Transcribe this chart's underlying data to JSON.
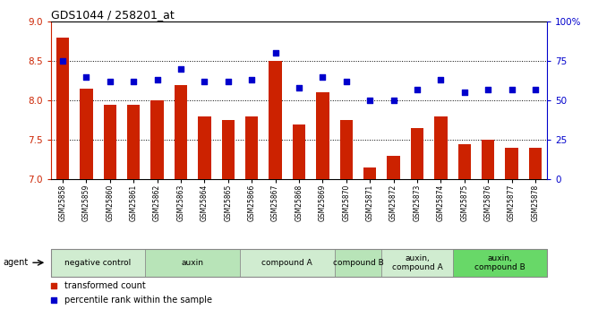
{
  "title": "GDS1044 / 258201_at",
  "samples": [
    "GSM25858",
    "GSM25859",
    "GSM25860",
    "GSM25861",
    "GSM25862",
    "GSM25863",
    "GSM25864",
    "GSM25865",
    "GSM25866",
    "GSM25867",
    "GSM25868",
    "GSM25869",
    "GSM25870",
    "GSM25871",
    "GSM25872",
    "GSM25873",
    "GSM25874",
    "GSM25875",
    "GSM25876",
    "GSM25877",
    "GSM25878"
  ],
  "bar_values": [
    8.8,
    8.15,
    7.95,
    7.95,
    8.0,
    8.2,
    7.8,
    7.75,
    7.8,
    8.5,
    7.7,
    8.1,
    7.75,
    7.15,
    7.3,
    7.65,
    7.8,
    7.45,
    7.5,
    7.4,
    7.4
  ],
  "dot_values": [
    75,
    65,
    62,
    62,
    63,
    70,
    62,
    62,
    63,
    80,
    58,
    65,
    62,
    50,
    50,
    57,
    63,
    55,
    57,
    57,
    57
  ],
  "bar_color": "#cc2200",
  "dot_color": "#0000cc",
  "ylim_left": [
    7.0,
    9.0
  ],
  "ylim_right": [
    0,
    100
  ],
  "yticks_left": [
    7.0,
    7.5,
    8.0,
    8.5,
    9.0
  ],
  "yticks_right": [
    0,
    25,
    50,
    75,
    100
  ],
  "ytick_labels_right": [
    "0",
    "25",
    "50",
    "75",
    "100%"
  ],
  "hlines": [
    7.5,
    8.0,
    8.5
  ],
  "groups": [
    {
      "label": "negative control",
      "start": 0,
      "end": 3,
      "color": "#d0ecd0"
    },
    {
      "label": "auxin",
      "start": 4,
      "end": 7,
      "color": "#b8e4b8"
    },
    {
      "label": "compound A",
      "start": 8,
      "end": 11,
      "color": "#d0ecd0"
    },
    {
      "label": "compound B",
      "start": 12,
      "end": 13,
      "color": "#b8e4b8"
    },
    {
      "label": "auxin,\ncompound A",
      "start": 14,
      "end": 16,
      "color": "#d0ecd0"
    },
    {
      "label": "auxin,\ncompound B",
      "start": 17,
      "end": 20,
      "color": "#68d868"
    }
  ],
  "legend_bar_label": "transformed count",
  "legend_dot_label": "percentile rank within the sample",
  "agent_label": "agent",
  "background_color": "#ffffff"
}
